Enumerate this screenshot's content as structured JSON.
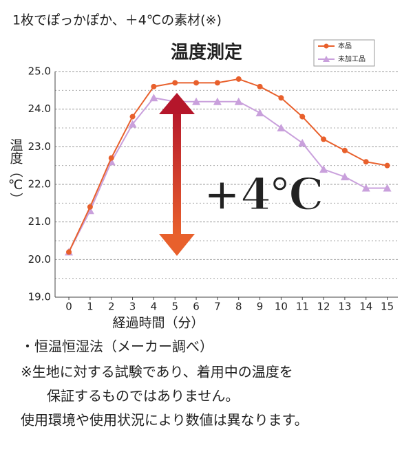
{
  "header": "1枚でぽっかぽか、＋4℃の素材(※)",
  "chart_data": {
    "type": "line",
    "title": "温度測定",
    "x": [
      0,
      1,
      2,
      3,
      4,
      5,
      6,
      7,
      8,
      9,
      10,
      11,
      12,
      13,
      14,
      15
    ],
    "series": [
      {
        "name": "本品",
        "color": "#e8602c",
        "marker": "circle",
        "values": [
          20.2,
          21.4,
          22.7,
          23.8,
          24.6,
          24.7,
          24.7,
          24.7,
          24.8,
          24.6,
          24.3,
          23.8,
          23.2,
          22.9,
          22.6,
          22.5
        ]
      },
      {
        "name": "未加工品",
        "color": "#c9a0dc",
        "marker": "triangle",
        "values": [
          20.2,
          21.3,
          22.6,
          23.6,
          24.3,
          24.2,
          24.2,
          24.2,
          24.2,
          23.9,
          23.5,
          23.1,
          22.4,
          22.2,
          21.9,
          21.9
        ]
      }
    ],
    "xlim": [
      -0.65,
      15.5
    ],
    "xticks": [
      0,
      1,
      2,
      3,
      4,
      5,
      6,
      7,
      8,
      9,
      10,
      11,
      12,
      13,
      14,
      15
    ],
    "ylim": [
      19,
      25
    ],
    "yticks": [
      {
        "value": 19,
        "label": "19.0"
      },
      {
        "value": 20,
        "label": "20.0"
      },
      {
        "value": 21,
        "label": "21.0"
      },
      {
        "value": 22,
        "label": "22.0"
      },
      {
        "value": 23,
        "label": "23.0"
      },
      {
        "value": 24,
        "label": "24.0"
      },
      {
        "value": 25,
        "label": "25.0"
      }
    ],
    "yminorticks": [
      19.5,
      20.5,
      21.5,
      22.5,
      23.5,
      24.5
    ],
    "grid": true,
    "legend": "upper right",
    "xlabel": "経過時間（分）",
    "ylabel": "温度（℃）",
    "annotation": "+4℃"
  },
  "notes": [
    "・恒温恒湿法（メーカー調べ）",
    "※生地に対する試験であり、着用中の温度を",
    "保証するものではありません。",
    "使用環境や使用状況により数値は異なります。"
  ]
}
